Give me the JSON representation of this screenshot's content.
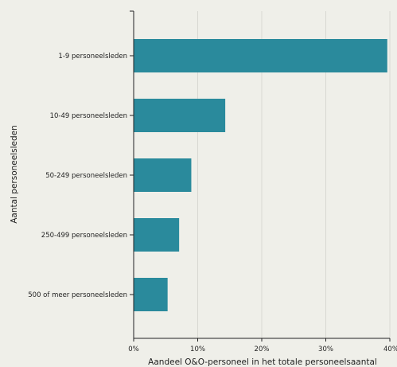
{
  "chart_data": {
    "type": "bar",
    "orientation": "horizontal",
    "categories": [
      "1-9 personeelsleden",
      "10-49 personeelsleden",
      "50-249 personeelsleden",
      "250-499 personeelsleden",
      "500 of meer personeelsleden"
    ],
    "values": [
      39.6,
      14.3,
      9.0,
      7.1,
      5.3
    ],
    "xlabel": "Aandeel O&O-personeel in het totale personeelsaantal",
    "ylabel": "Aantal personeelsleden",
    "xlim": [
      0,
      40
    ],
    "xticks": [
      0,
      10,
      20,
      30,
      40
    ],
    "xtick_labels": [
      "0%",
      "10%",
      "20%",
      "30%",
      "40%"
    ],
    "grid": "vertical",
    "colors": {
      "bar": "#2a8a9c",
      "background": "#efefe9",
      "grid": "#d8d8d2",
      "axis": "#222222"
    }
  }
}
